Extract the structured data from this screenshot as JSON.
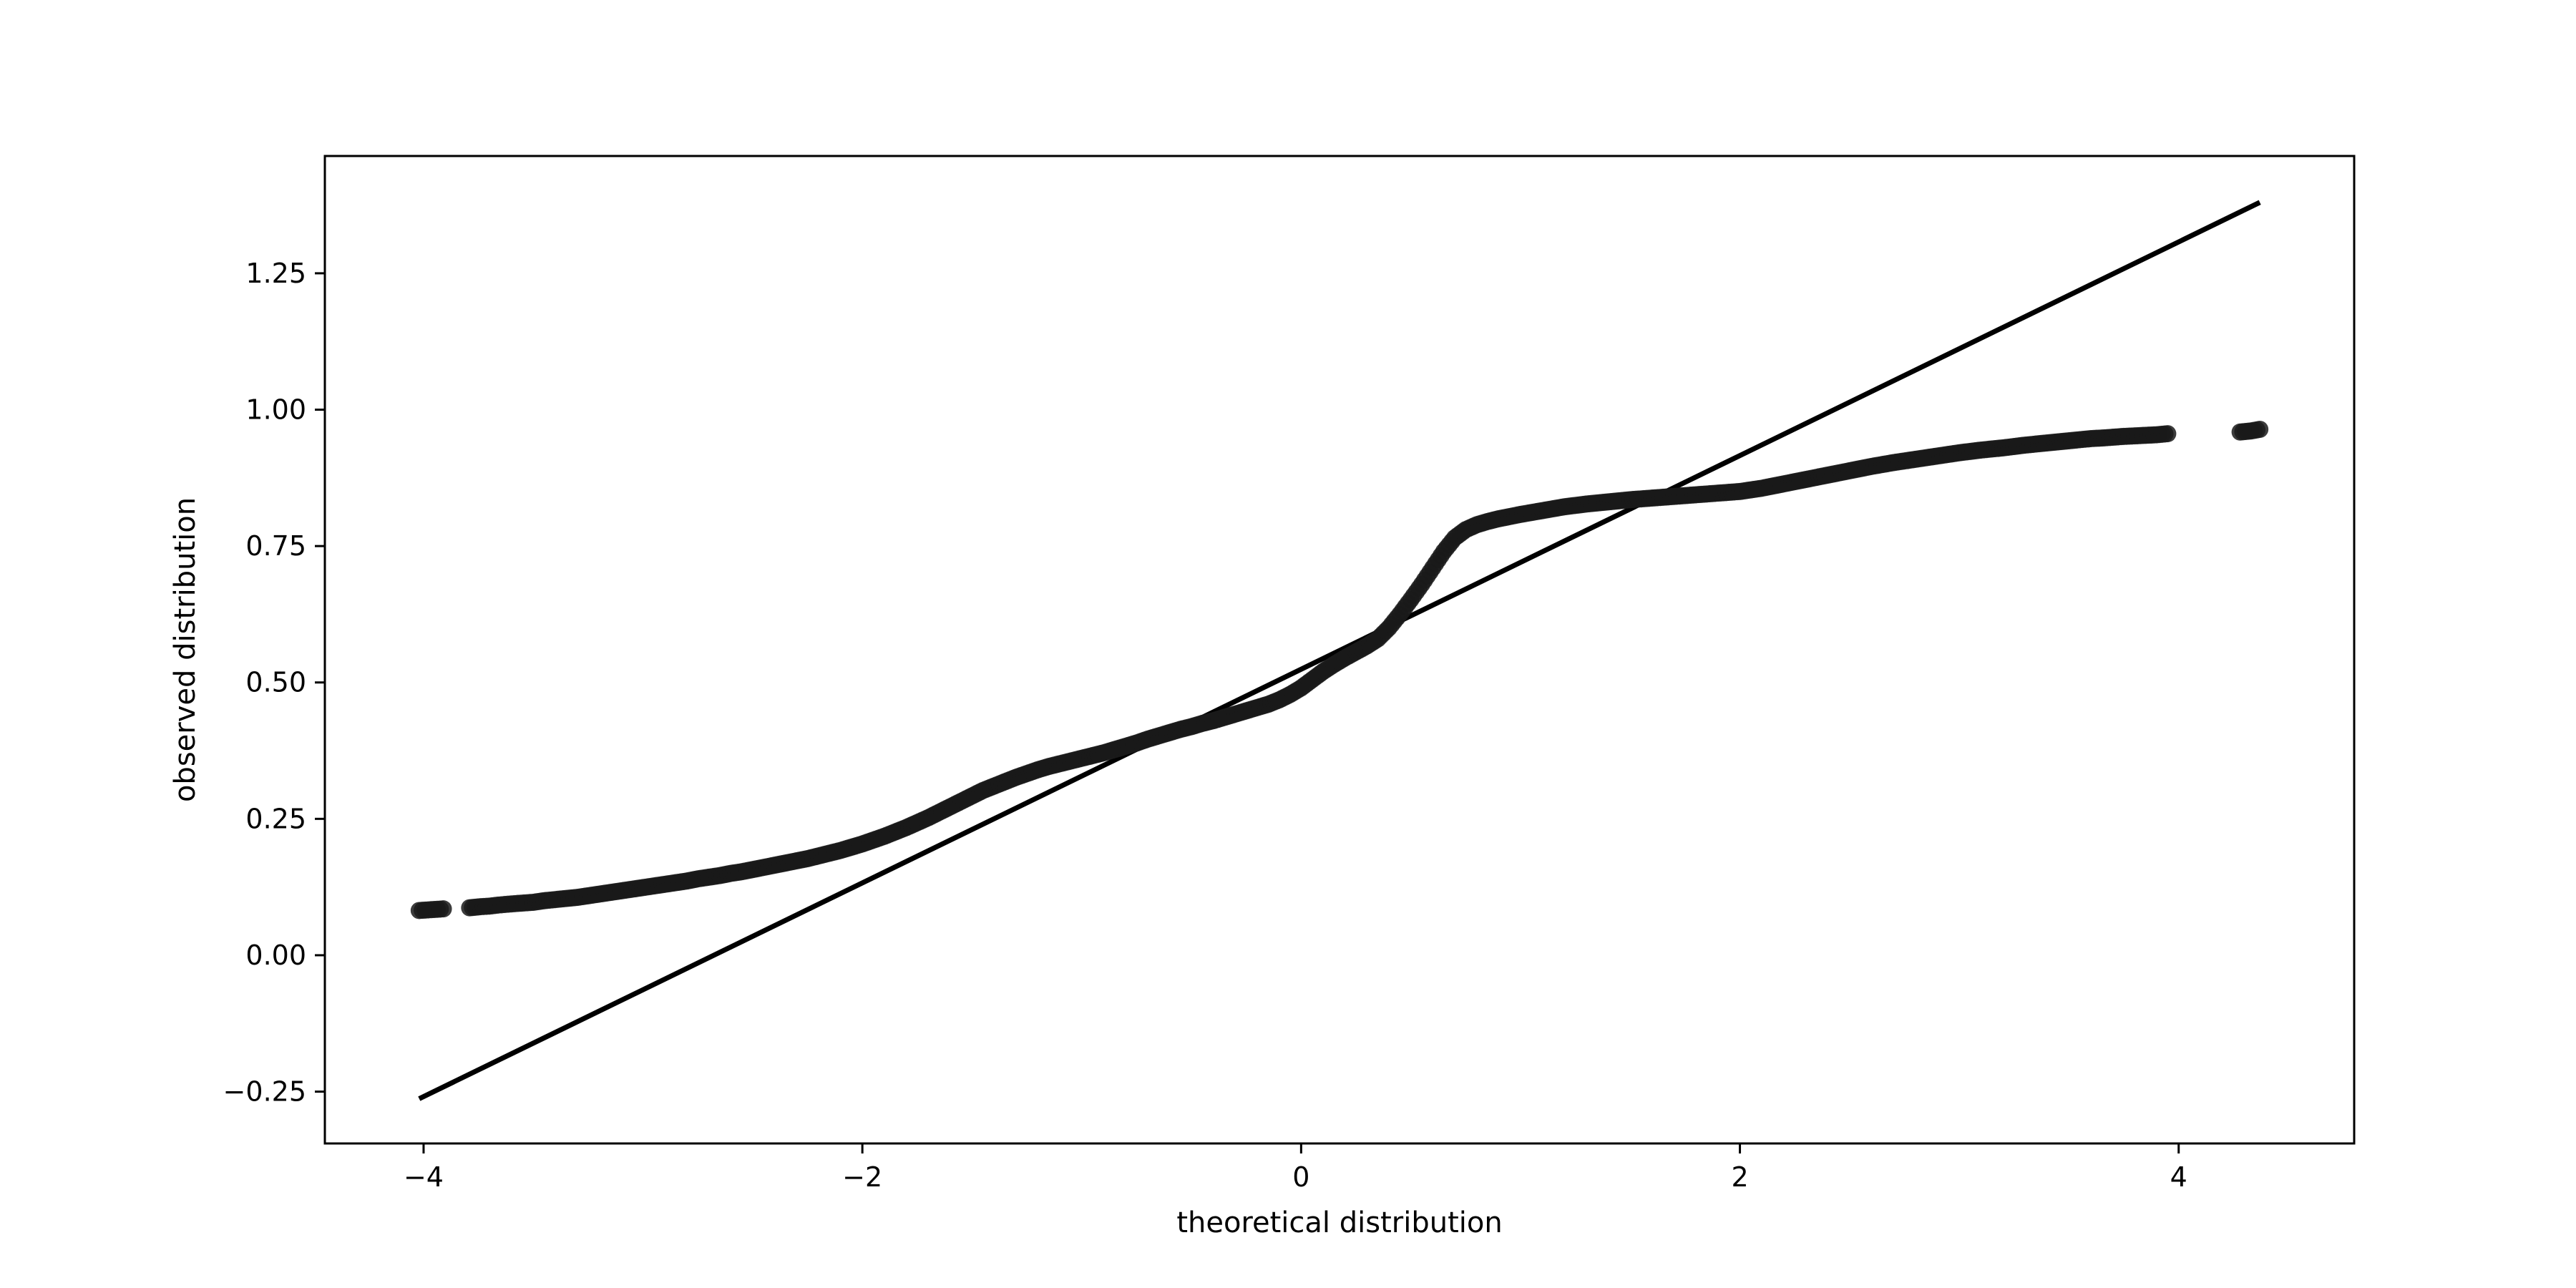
{
  "chart_data": {
    "type": "scatter",
    "xlabel": "theoretical distribution",
    "ylabel": "observed distribution",
    "xlim": [
      -4.45,
      4.8
    ],
    "ylim": [
      -0.345,
      1.465
    ],
    "xticks": [
      -4,
      -2,
      0,
      2,
      4
    ],
    "xtick_labels": [
      "−4",
      "−2",
      "0",
      "2",
      "4"
    ],
    "yticks": [
      -0.25,
      0.0,
      0.25,
      0.5,
      0.75,
      1.0,
      1.25
    ],
    "ytick_labels": [
      "−0.25",
      "0.00",
      "0.25",
      "0.50",
      "0.75",
      "1.00",
      "1.25"
    ],
    "grid": false,
    "marker_color": "#1a1a1a",
    "line_color": "#000000",
    "series": [
      {
        "kind": "points",
        "x": [
          -4.02,
          -3.91,
          -3.79,
          -3.74,
          -3.7,
          -3.66,
          -3.63,
          -3.6,
          -3.57,
          -3.5,
          -3.45,
          -3.4,
          -3.35,
          -3.3,
          -3.25,
          -3.2,
          -3.15,
          -3.1,
          -3.05,
          -3.0,
          -2.95,
          -2.9,
          -2.85,
          -2.8,
          -2.75,
          -2.7,
          -2.65,
          -2.6,
          -2.55,
          -2.5,
          -2.45,
          -2.4,
          -2.35,
          -2.3,
          -2.25,
          -2.2,
          -2.15,
          -2.1,
          -2.05,
          -2.0,
          -1.95,
          -1.9,
          -1.85,
          -1.8,
          -1.75,
          -1.7,
          -1.65,
          -1.6,
          -1.55,
          -1.5,
          -1.45,
          -1.4,
          -1.35,
          -1.3,
          -1.25,
          -1.2,
          -1.15,
          -1.1,
          -1.05,
          -1.0,
          -0.95,
          -0.9,
          -0.85,
          -0.8,
          -0.75,
          -0.7,
          -0.65,
          -0.6,
          -0.55,
          -0.5,
          -0.45,
          -0.4,
          -0.35,
          -0.3,
          -0.25,
          -0.2,
          -0.15,
          -0.1,
          -0.05,
          0.0,
          0.05,
          0.1,
          0.15,
          0.2,
          0.25,
          0.3,
          0.35,
          0.4,
          0.45,
          0.5,
          0.55,
          0.6,
          0.65,
          0.7,
          0.75,
          0.8,
          0.85,
          0.9,
          0.95,
          1.0,
          1.1,
          1.2,
          1.3,
          1.4,
          1.5,
          1.6,
          1.7,
          1.8,
          1.9,
          2.0,
          2.1,
          2.2,
          2.3,
          2.4,
          2.5,
          2.6,
          2.7,
          2.8,
          2.9,
          3.0,
          3.1,
          3.2,
          3.3,
          3.4,
          3.5,
          3.55,
          3.6,
          3.65,
          3.75,
          3.8,
          3.85,
          3.9,
          3.95,
          4.28,
          4.33,
          4.37
        ],
        "y": [
          0.082,
          0.085,
          0.087,
          0.089,
          0.09,
          0.092,
          0.093,
          0.094,
          0.095,
          0.097,
          0.1,
          0.102,
          0.104,
          0.106,
          0.109,
          0.112,
          0.115,
          0.118,
          0.121,
          0.124,
          0.127,
          0.13,
          0.133,
          0.136,
          0.14,
          0.143,
          0.146,
          0.15,
          0.153,
          0.157,
          0.161,
          0.165,
          0.169,
          0.173,
          0.177,
          0.182,
          0.187,
          0.192,
          0.198,
          0.204,
          0.211,
          0.218,
          0.226,
          0.234,
          0.243,
          0.252,
          0.262,
          0.272,
          0.282,
          0.292,
          0.302,
          0.31,
          0.318,
          0.326,
          0.333,
          0.34,
          0.346,
          0.351,
          0.356,
          0.361,
          0.366,
          0.371,
          0.377,
          0.383,
          0.389,
          0.396,
          0.402,
          0.408,
          0.414,
          0.419,
          0.425,
          0.43,
          0.436,
          0.442,
          0.448,
          0.454,
          0.46,
          0.468,
          0.478,
          0.49,
          0.505,
          0.52,
          0.533,
          0.545,
          0.556,
          0.567,
          0.58,
          0.6,
          0.625,
          0.652,
          0.68,
          0.71,
          0.74,
          0.765,
          0.78,
          0.789,
          0.795,
          0.8,
          0.804,
          0.808,
          0.815,
          0.822,
          0.827,
          0.831,
          0.835,
          0.838,
          0.841,
          0.844,
          0.847,
          0.85,
          0.856,
          0.864,
          0.872,
          0.88,
          0.888,
          0.896,
          0.903,
          0.909,
          0.915,
          0.921,
          0.926,
          0.93,
          0.935,
          0.939,
          0.943,
          0.945,
          0.947,
          0.948,
          0.951,
          0.952,
          0.953,
          0.954,
          0.956,
          0.959,
          0.961,
          0.964
        ]
      },
      {
        "kind": "reference-line",
        "x": [
          -4.02,
          4.37
        ],
        "y": [
          -0.263,
          1.38
        ]
      }
    ]
  }
}
